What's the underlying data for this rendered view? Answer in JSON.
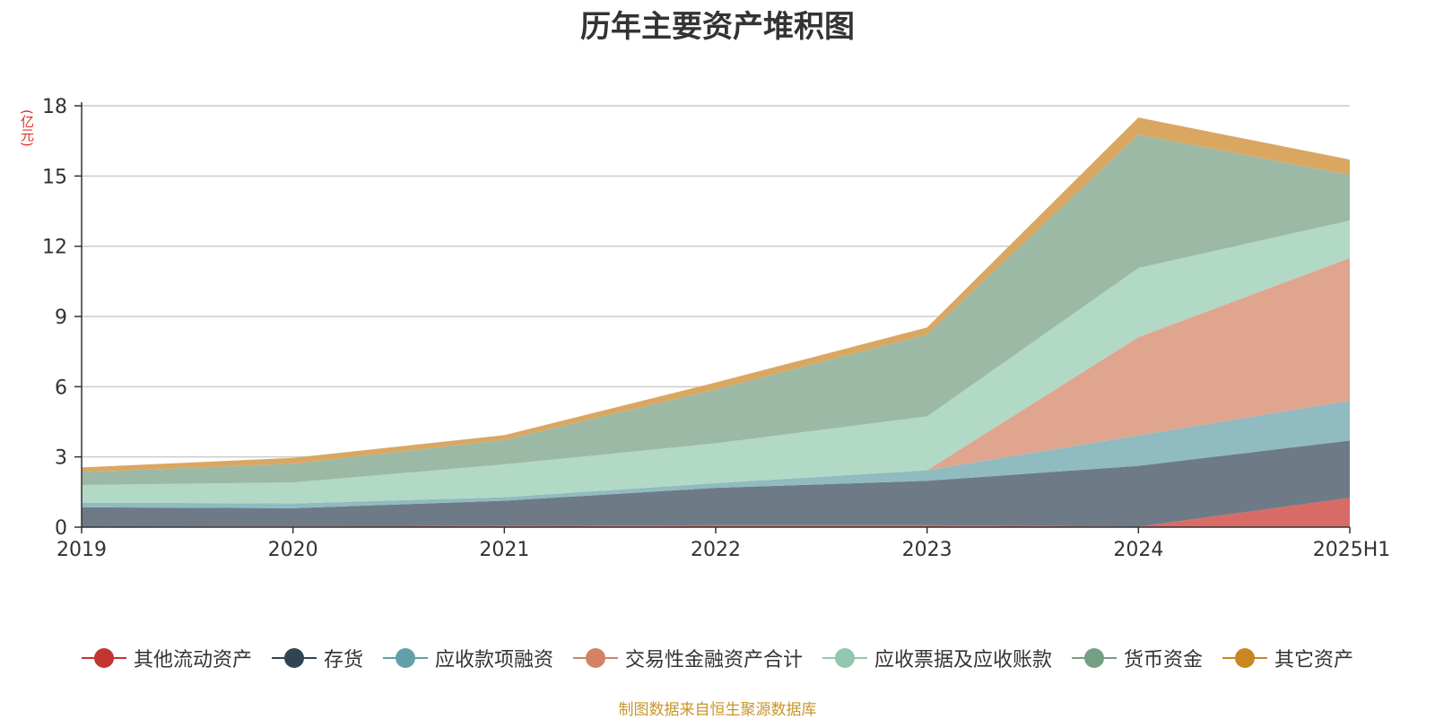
{
  "title": "历年主要资产堆积图",
  "unit_label": "(亿元)",
  "source_note": "制图数据来自恒生聚源数据库",
  "chart_data": {
    "type": "area",
    "stacked": true,
    "title": "历年主要资产堆积图",
    "ylabel": "(亿元)",
    "ylim": [
      0,
      18
    ],
    "yticks": [
      "0",
      "3",
      "6",
      "9",
      "12",
      "15",
      "18"
    ],
    "categories": [
      "2019",
      "2020",
      "2021",
      "2022",
      "2023",
      "2024",
      "2025H1"
    ],
    "grid": true,
    "legend_position": "bottom",
    "series": [
      {
        "name": "其他流动资产",
        "color": "#c23531",
        "fill": "#d96b66",
        "values": [
          0.02,
          0.03,
          0.05,
          0.08,
          0.08,
          0.02,
          1.25
        ]
      },
      {
        "name": "存货",
        "color": "#2f4554",
        "fill": "#6e7b86",
        "values": [
          0.83,
          0.78,
          1.08,
          1.6,
          1.9,
          2.6,
          2.45
        ]
      },
      {
        "name": "应收款项融资",
        "color": "#61a0a8",
        "fill": "#8fbbc1",
        "values": [
          0.2,
          0.2,
          0.15,
          0.2,
          0.45,
          1.3,
          1.7
        ]
      },
      {
        "name": "交易性金融资产合计",
        "color": "#d48265",
        "fill": "#e0a58f",
        "values": [
          0,
          0,
          0,
          0,
          0,
          4.2,
          6.1
        ]
      },
      {
        "name": "应收票据及应收账款",
        "color": "#91c7ae",
        "fill": "#b2d8c6",
        "values": [
          0.75,
          0.9,
          1.4,
          1.7,
          2.3,
          2.95,
          1.6
        ]
      },
      {
        "name": "货币资金",
        "color": "#749f83",
        "fill": "#9cb9a6",
        "values": [
          0.55,
          0.8,
          1.05,
          2.3,
          3.5,
          5.7,
          1.95
        ]
      },
      {
        "name": "其它资产",
        "color": "#ca8622",
        "fill": "#d9a762",
        "values": [
          0.2,
          0.25,
          0.2,
          0.3,
          0.3,
          0.73,
          0.65
        ]
      }
    ]
  }
}
